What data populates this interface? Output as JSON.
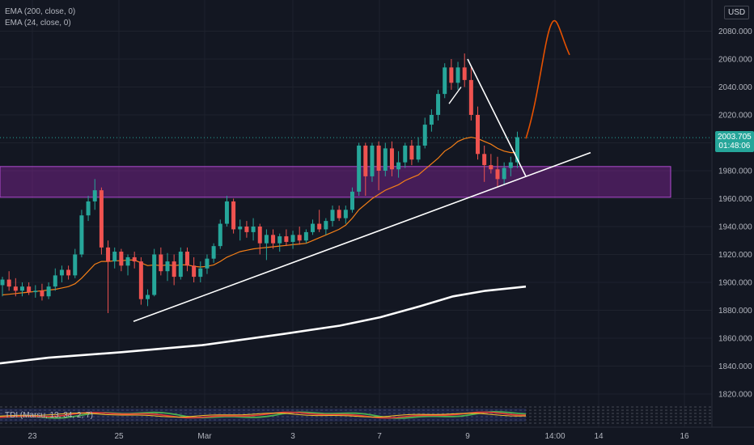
{
  "indicators": {
    "ema200": "EMA (200, close, 0)",
    "ema24": "EMA (24, close, 0)",
    "tdi": "TDI (Marsu, 13, 34, 2, 7)"
  },
  "currency": "USD",
  "last_price": "2003.705",
  "countdown": "01:48:06",
  "colors": {
    "background": "#131722",
    "bull": "#26a69a",
    "bear": "#ef5350",
    "ema24": "#f57f17",
    "ema200": "#ffffff",
    "zone": "#9c27b0",
    "axis_text": "#b2b5be"
  },
  "chart_data": {
    "type": "candlestick",
    "ylim": [
      1804,
      2090
    ],
    "y_ticks": [
      1820,
      1840,
      1860,
      1880,
      1900,
      1920,
      1940,
      1960,
      1980,
      2000,
      2020,
      2040,
      2060,
      2080
    ],
    "x_tick_labels": [
      "23",
      "25",
      "Mar",
      "3",
      "7",
      "9",
      "14:00",
      "14",
      "16"
    ],
    "candles": [
      [
        1898,
        1904,
        1890,
        1902
      ],
      [
        1902,
        1908,
        1894,
        1897
      ],
      [
        1897,
        1903,
        1890,
        1894
      ],
      [
        1894,
        1900,
        1890,
        1897
      ],
      [
        1897,
        1900,
        1891,
        1893
      ],
      [
        1893,
        1898,
        1889,
        1894
      ],
      [
        1894,
        1899,
        1887,
        1890
      ],
      [
        1890,
        1900,
        1888,
        1897
      ],
      [
        1897,
        1910,
        1894,
        1905
      ],
      [
        1905,
        1912,
        1900,
        1909
      ],
      [
        1909,
        1912,
        1902,
        1905
      ],
      [
        1905,
        1924,
        1903,
        1920
      ],
      [
        1920,
        1952,
        1918,
        1948
      ],
      [
        1948,
        1962,
        1944,
        1958
      ],
      [
        1958,
        1974,
        1952,
        1966
      ],
      [
        1966,
        1968,
        1920,
        1925
      ],
      [
        1925,
        1930,
        1878,
        1915
      ],
      [
        1915,
        1925,
        1910,
        1922
      ],
      [
        1922,
        1924,
        1908,
        1912
      ],
      [
        1912,
        1920,
        1905,
        1918
      ],
      [
        1918,
        1922,
        1910,
        1915
      ],
      [
        1915,
        1918,
        1884,
        1888
      ],
      [
        1888,
        1895,
        1883,
        1891
      ],
      [
        1891,
        1924,
        1890,
        1920
      ],
      [
        1920,
        1925,
        1905,
        1908
      ],
      [
        1908,
        1921,
        1901,
        1915
      ],
      [
        1915,
        1920,
        1898,
        1904
      ],
      [
        1904,
        1925,
        1902,
        1922
      ],
      [
        1922,
        1925,
        1908,
        1912
      ],
      [
        1912,
        1918,
        1900,
        1904
      ],
      [
        1904,
        1915,
        1900,
        1910
      ],
      [
        1910,
        1920,
        1906,
        1917
      ],
      [
        1917,
        1928,
        1914,
        1926
      ],
      [
        1926,
        1945,
        1924,
        1942
      ],
      [
        1942,
        1962,
        1940,
        1958
      ],
      [
        1958,
        1960,
        1935,
        1938
      ],
      [
        1938,
        1945,
        1930,
        1940
      ],
      [
        1940,
        1944,
        1932,
        1936
      ],
      [
        1936,
        1946,
        1930,
        1940
      ],
      [
        1940,
        1942,
        1920,
        1928
      ],
      [
        1928,
        1938,
        1916,
        1934
      ],
      [
        1934,
        1938,
        1924,
        1928
      ],
      [
        1928,
        1935,
        1922,
        1933
      ],
      [
        1933,
        1938,
        1926,
        1929
      ],
      [
        1929,
        1937,
        1924,
        1934
      ],
      [
        1934,
        1940,
        1927,
        1930
      ],
      [
        1930,
        1938,
        1928,
        1936
      ],
      [
        1936,
        1945,
        1934,
        1942
      ],
      [
        1942,
        1952,
        1936,
        1938
      ],
      [
        1938,
        1946,
        1934,
        1944
      ],
      [
        1944,
        1955,
        1940,
        1952
      ],
      [
        1952,
        1955,
        1944,
        1946
      ],
      [
        1946,
        1955,
        1942,
        1952
      ],
      [
        1952,
        1968,
        1950,
        1965
      ],
      [
        1965,
        2000,
        1962,
        1998
      ],
      [
        1998,
        2000,
        1962,
        1976
      ],
      [
        1976,
        2000,
        1972,
        1998
      ],
      [
        1998,
        2001,
        1966,
        1980
      ],
      [
        1980,
        2000,
        1976,
        1996
      ],
      [
        1996,
        2001,
        1976,
        1981
      ],
      [
        1981,
        1994,
        1975,
        1986
      ],
      [
        1986,
        2000,
        1982,
        1998
      ],
      [
        1998,
        2002,
        1984,
        1988
      ],
      [
        1988,
        2004,
        1986,
        1998
      ],
      [
        1998,
        2018,
        1996,
        2013
      ],
      [
        2013,
        2024,
        2008,
        2020
      ],
      [
        2020,
        2038,
        2016,
        2035
      ],
      [
        2035,
        2057,
        2032,
        2054
      ],
      [
        2054,
        2060,
        2038,
        2043
      ],
      [
        2043,
        2058,
        2038,
        2054
      ],
      [
        2054,
        2064,
        2040,
        2045
      ],
      [
        2045,
        2054,
        2016,
        2020
      ],
      [
        2020,
        2026,
        1988,
        1992
      ],
      [
        1992,
        1998,
        1972,
        1984
      ],
      [
        1984,
        1992,
        1978,
        1981
      ],
      [
        1981,
        1990,
        1968,
        1974
      ],
      [
        1974,
        1986,
        1970,
        1982
      ],
      [
        1982,
        1990,
        1976,
        1986
      ],
      [
        1986,
        2008,
        1982,
        2004
      ]
    ],
    "ema24": [
      1891,
      1891.5,
      1892,
      1892.5,
      1893,
      1893.5,
      1894,
      1894.5,
      1895,
      1896,
      1897,
      1899,
      1903,
      1908,
      1913,
      1915,
      1915,
      1915.5,
      1915.5,
      1916,
      1916,
      1914,
      1912,
      1912.5,
      1912,
      1912.5,
      1912,
      1912.5,
      1912.5,
      1911.5,
      1911,
      1911.5,
      1912.5,
      1915,
      1918,
      1920,
      1922,
      1923,
      1924,
      1924.5,
      1925,
      1925.5,
      1926,
      1926.5,
      1927,
      1927.5,
      1928,
      1930,
      1932,
      1934,
      1936,
      1938,
      1941,
      1946,
      1952,
      1956,
      1960,
      1963,
      1966,
      1968,
      1970,
      1973,
      1975,
      1977,
      1981,
      1985,
      1989,
      1994,
      1997,
      2001,
      2003,
      2004,
      2003,
      2001,
      1999,
      1996,
      1994,
      1993,
      1993
    ],
    "ema200": [
      [
        0,
        1842
      ],
      [
        60,
        1846
      ],
      [
        150,
        1850
      ],
      [
        250,
        1855
      ],
      [
        350,
        1863
      ],
      [
        420,
        1869
      ],
      [
        470,
        1875
      ],
      [
        520,
        1883
      ],
      [
        560,
        1890
      ],
      [
        600,
        1894
      ],
      [
        650,
        1897
      ]
    ],
    "support_trendline": [
      [
        165,
        1872
      ],
      [
        730,
        1993
      ]
    ],
    "down_trendline": [
      [
        578,
        2060
      ],
      [
        650,
        1976
      ]
    ],
    "forecast_path": [
      [
        650,
        2003
      ],
      [
        665,
        2030
      ],
      [
        672,
        2070
      ],
      [
        680,
        2083
      ],
      [
        692,
        2078
      ],
      [
        704,
        2063
      ]
    ],
    "zone": {
      "from": 1961,
      "to": 1983
    },
    "current_price": 2003.705
  }
}
